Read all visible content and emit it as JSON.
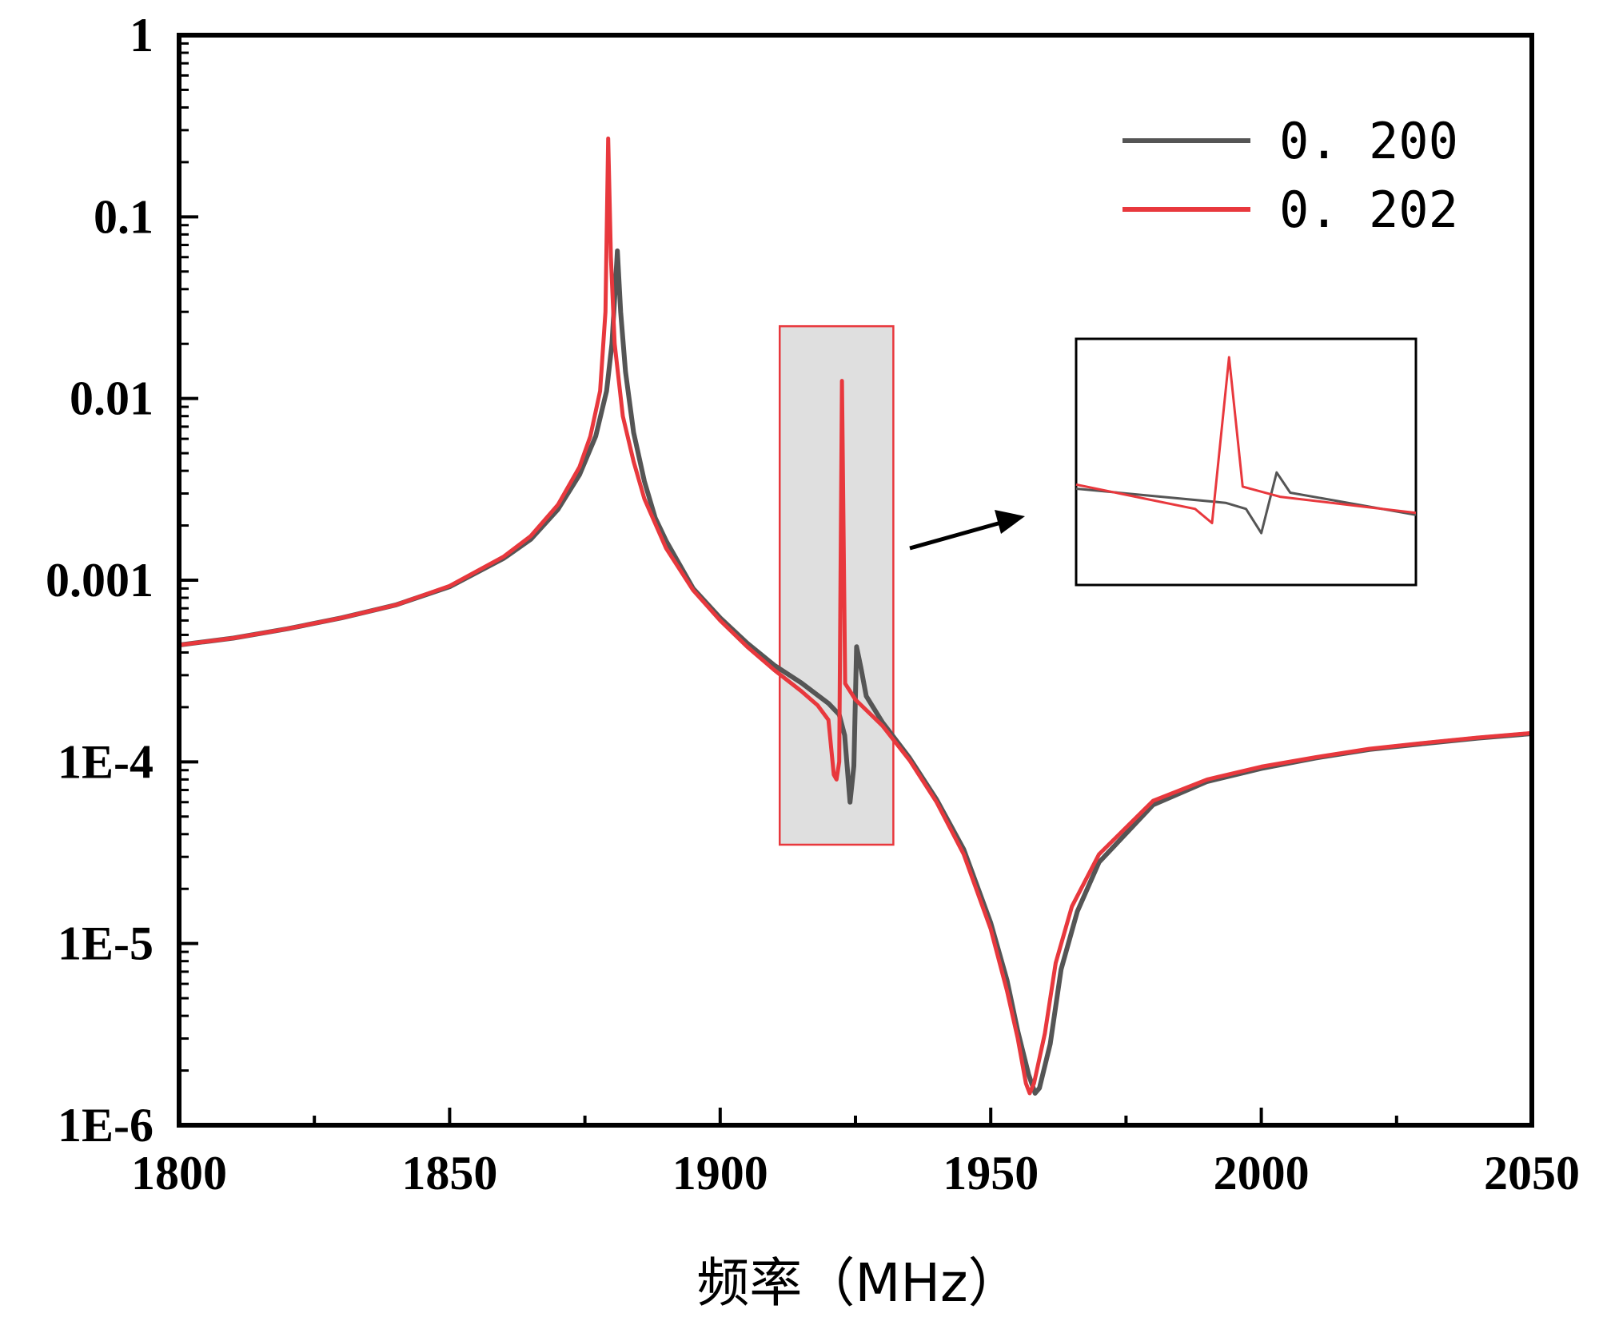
{
  "chart_data": {
    "type": "line",
    "title": "",
    "xlabel": "频率（MHz）",
    "ylabel": "",
    "xlim": [
      1800,
      2050
    ],
    "ylim": [
      1e-06,
      1
    ],
    "yscale": "log",
    "grid": false,
    "legend_position": "top-right",
    "x_ticks": [
      "1800",
      "1850",
      "1900",
      "1950",
      "2000",
      "2050"
    ],
    "y_ticks": [
      "1",
      "0.1",
      "0.01",
      "0.001",
      "1E-4",
      "1E-5",
      "1E-6"
    ],
    "series": [
      {
        "name": "0. 200",
        "color": "#555555",
        "points": [
          [
            1800,
            0.00044
          ],
          [
            1810,
            0.00048
          ],
          [
            1820,
            0.00054
          ],
          [
            1830,
            0.00062
          ],
          [
            1840,
            0.00073
          ],
          [
            1850,
            0.00092
          ],
          [
            1860,
            0.00132
          ],
          [
            1865,
            0.00168
          ],
          [
            1870,
            0.00245
          ],
          [
            1874,
            0.0038
          ],
          [
            1877,
            0.0062
          ],
          [
            1879,
            0.011
          ],
          [
            1880,
            0.02
          ],
          [
            1880.6,
            0.04
          ],
          [
            1881,
            0.065
          ],
          [
            1881.6,
            0.03
          ],
          [
            1882.5,
            0.014
          ],
          [
            1884,
            0.0065
          ],
          [
            1886,
            0.0035
          ],
          [
            1888,
            0.0022
          ],
          [
            1890,
            0.00165
          ],
          [
            1895,
            0.0009
          ],
          [
            1900,
            0.00062
          ],
          [
            1905,
            0.00045
          ],
          [
            1910,
            0.00034
          ],
          [
            1915,
            0.000272
          ],
          [
            1920,
            0.00021
          ],
          [
            1922,
            0.000182
          ],
          [
            1923,
            0.00014
          ],
          [
            1924,
            6e-05
          ],
          [
            1924.7,
            9.5e-05
          ],
          [
            1925.2,
            0.00043
          ],
          [
            1926,
            0.00033
          ],
          [
            1927,
            0.00023
          ],
          [
            1930,
            0.000165
          ],
          [
            1935,
            0.000105
          ],
          [
            1940,
            6.2e-05
          ],
          [
            1945,
            3.3e-05
          ],
          [
            1950,
            1.3e-05
          ],
          [
            1953,
            6.3e-06
          ],
          [
            1955,
            3.3e-06
          ],
          [
            1957,
            1.9e-06
          ],
          [
            1958.2,
            1.5e-06
          ],
          [
            1959,
            1.6e-06
          ],
          [
            1961,
            2.8e-06
          ],
          [
            1963,
            7.2e-06
          ],
          [
            1966,
            1.5e-05
          ],
          [
            1970,
            2.8e-05
          ],
          [
            1980,
            5.8e-05
          ],
          [
            1990,
            7.8e-05
          ],
          [
            2000,
            9.2e-05
          ],
          [
            2010,
            0.000105
          ],
          [
            2020,
            0.000117
          ],
          [
            2030,
            0.000126
          ],
          [
            2040,
            0.000135
          ],
          [
            2050,
            0.000143
          ]
        ]
      },
      {
        "name": "0. 202",
        "color": "#e8383d",
        "points": [
          [
            1800,
            0.00044
          ],
          [
            1810,
            0.00048
          ],
          [
            1820,
            0.00054
          ],
          [
            1830,
            0.00062
          ],
          [
            1840,
            0.00073
          ],
          [
            1850,
            0.00093
          ],
          [
            1860,
            0.00135
          ],
          [
            1865,
            0.00175
          ],
          [
            1870,
            0.0026
          ],
          [
            1874,
            0.0042
          ],
          [
            1876,
            0.0062
          ],
          [
            1877.8,
            0.011
          ],
          [
            1878.8,
            0.03
          ],
          [
            1879.3,
            0.27
          ],
          [
            1879.8,
            0.06
          ],
          [
            1880.5,
            0.02
          ],
          [
            1882,
            0.008
          ],
          [
            1884,
            0.0045
          ],
          [
            1886,
            0.0028
          ],
          [
            1890,
            0.0015
          ],
          [
            1895,
            0.00088
          ],
          [
            1900,
            0.0006
          ],
          [
            1905,
            0.00043
          ],
          [
            1910,
            0.00032
          ],
          [
            1915,
            0.000245
          ],
          [
            1918,
            0.000205
          ],
          [
            1920,
            0.00017
          ],
          [
            1921,
            8.5e-05
          ],
          [
            1921.5,
            8e-05
          ],
          [
            1922,
            0.0001
          ],
          [
            1922.5,
            0.0125
          ],
          [
            1923.1,
            0.00027
          ],
          [
            1925,
            0.00022
          ],
          [
            1930,
            0.000158
          ],
          [
            1935,
            0.000102
          ],
          [
            1940,
            6e-05
          ],
          [
            1945,
            3.1e-05
          ],
          [
            1950,
            1.2e-05
          ],
          [
            1953,
            5.5e-06
          ],
          [
            1955,
            3e-06
          ],
          [
            1956.5,
            1.7e-06
          ],
          [
            1957.2,
            1.5e-06
          ],
          [
            1958,
            1.7e-06
          ],
          [
            1960,
            3.2e-06
          ],
          [
            1962,
            7.8e-06
          ],
          [
            1965,
            1.6e-05
          ],
          [
            1970,
            3.1e-05
          ],
          [
            1980,
            6.1e-05
          ],
          [
            1990,
            8e-05
          ],
          [
            2000,
            9.4e-05
          ],
          [
            2010,
            0.000106
          ],
          [
            2020,
            0.000118
          ],
          [
            2030,
            0.000127
          ],
          [
            2040,
            0.000136
          ],
          [
            2050,
            0.000144
          ]
        ]
      }
    ],
    "highlight_region": {
      "x_range": [
        1911,
        1932
      ],
      "y_range": [
        3.5e-05,
        0.025
      ],
      "fill": "#dddddd",
      "stroke": "#e8383d"
    },
    "inset": {
      "description_free": true,
      "series": [
        {
          "name": "0. 200",
          "color": "#555555",
          "points": [
            [
              0,
              0.35
            ],
            [
              0.44,
              0.28
            ],
            [
              0.5,
              0.25
            ],
            [
              0.545,
              0.13
            ],
            [
              0.59,
              0.43
            ],
            [
              0.63,
              0.33
            ],
            [
              1,
              0.22
            ]
          ]
        },
        {
          "name": "0. 202",
          "color": "#e8383d",
          "points": [
            [
              0,
              0.37
            ],
            [
              0.35,
              0.25
            ],
            [
              0.4,
              0.18
            ],
            [
              0.45,
              1.0
            ],
            [
              0.49,
              0.36
            ],
            [
              0.6,
              0.31
            ],
            [
              1,
              0.23
            ]
          ]
        }
      ]
    }
  }
}
